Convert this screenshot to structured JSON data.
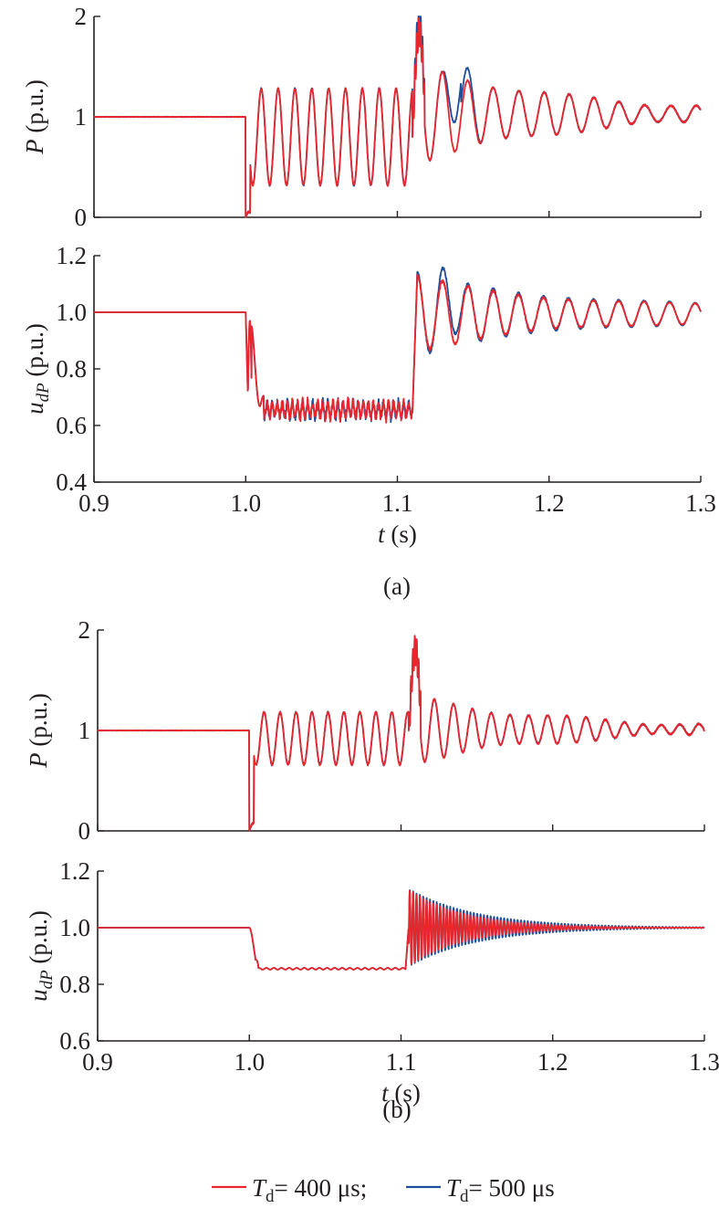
{
  "figure": {
    "panel_labels": [
      "(a)",
      "(b)"
    ],
    "legend": {
      "entries": [
        {
          "symbol": "T",
          "subscript": "d",
          "rest": "= 400 μs;",
          "color": "#e8262d"
        },
        {
          "symbol": "T",
          "subscript": "d",
          "rest": "= 500 μs",
          "color": "#1f4e9c"
        }
      ]
    }
  },
  "chart_data": [
    {
      "id": "a-top",
      "type": "line",
      "panel": "(a)",
      "ylabel": {
        "var": "P",
        "rest": " (p.u.)"
      },
      "xlim": [
        0.9,
        1.3
      ],
      "ylim": [
        0,
        2
      ],
      "yticks": [
        "0",
        "1",
        "2"
      ],
      "xticks": [],
      "xlabel": null,
      "params": {
        "kind": "P",
        "pre": 1.0,
        "tf": 1.0,
        "tc": 1.11,
        "osc_center": 0.8,
        "osc_amp": 0.48,
        "osc_freq": 90,
        "min_first": 0.3,
        "peak_red": 1.85,
        "peak_blue": 1.97,
        "settle": 1.03,
        "post_freq": 60,
        "post_amp": 0.15,
        "post_decay": 10
      },
      "series": [
        {
          "color": "#1f4e9c",
          "variant": "blue"
        },
        {
          "color": "#e8262d",
          "variant": "red"
        }
      ]
    },
    {
      "id": "a-bottom",
      "type": "line",
      "panel": "(a)",
      "ylabel": {
        "var": "u",
        "sub": "dP",
        "rest": " (p.u.)"
      },
      "xlim": [
        0.9,
        1.3
      ],
      "ylim": [
        0.4,
        1.2
      ],
      "yticks": [
        "0.4",
        "0.6",
        "0.8",
        "1.0",
        "1.2"
      ],
      "xticks": [
        "0.9",
        "1.0",
        "1.1",
        "1.2",
        "1.3"
      ],
      "xlabel": {
        "var": "t",
        "rest": " (s)"
      },
      "params": {
        "kind": "U",
        "pre": 1.0,
        "tf": 1.0,
        "tc": 1.11,
        "dip_level": 0.655,
        "noise": 0.03,
        "peak_red": 1.11,
        "peak_blue": 1.12,
        "settle": 0.995,
        "post_freq": 60,
        "post_amp": 0.04,
        "post_decay": 8
      },
      "series": [
        {
          "color": "#1f4e9c",
          "variant": "blue"
        },
        {
          "color": "#e8262d",
          "variant": "red"
        }
      ]
    },
    {
      "id": "b-top",
      "type": "line",
      "panel": "(b)",
      "ylabel": {
        "var": "P",
        "rest": " (p.u.)"
      },
      "xlim": [
        0.9,
        1.3
      ],
      "ylim": [
        0,
        2
      ],
      "yticks": [
        "0",
        "1",
        "2"
      ],
      "xticks": [],
      "xlabel": null,
      "params": {
        "kind": "P",
        "pre": 1.0,
        "tf": 1.0,
        "tc": 1.105,
        "osc_center": 0.92,
        "osc_amp": 0.26,
        "osc_freq": 95,
        "min_first": 0.55,
        "peak_red": 1.8,
        "peak_blue": 1.8,
        "settle": 1.01,
        "post_freq": 80,
        "post_amp": 0.1,
        "post_decay": 10
      },
      "series": [
        {
          "color": "#1f4e9c",
          "variant": "blue"
        },
        {
          "color": "#e8262d",
          "variant": "red"
        }
      ]
    },
    {
      "id": "b-bottom",
      "type": "line",
      "panel": "(b)",
      "ylabel": {
        "var": "u",
        "sub": "dP",
        "rest": " (p.u.)"
      },
      "xlim": [
        0.9,
        1.3
      ],
      "ylim": [
        0.6,
        1.2
      ],
      "yticks": [
        "0.6",
        "0.8",
        "1.0",
        "1.2"
      ],
      "xticks": [
        "0.9",
        "1.0",
        "1.1",
        "1.2",
        "1.3"
      ],
      "xlabel": {
        "var": "t",
        "rest": " (s)"
      },
      "params": {
        "kind": "Ub",
        "pre": 1.0,
        "tf": 1.0,
        "tc": 1.103,
        "dip_level": 0.855,
        "noise": 0.003,
        "peak_red": 1.1,
        "peak_blue": 1.1,
        "settle": 1.0,
        "post_freq": 450,
        "post_amp": 0.09,
        "post_decay": 28
      },
      "series": [
        {
          "color": "#1f4e9c",
          "variant": "blue"
        },
        {
          "color": "#e8262d",
          "variant": "red"
        }
      ]
    }
  ]
}
